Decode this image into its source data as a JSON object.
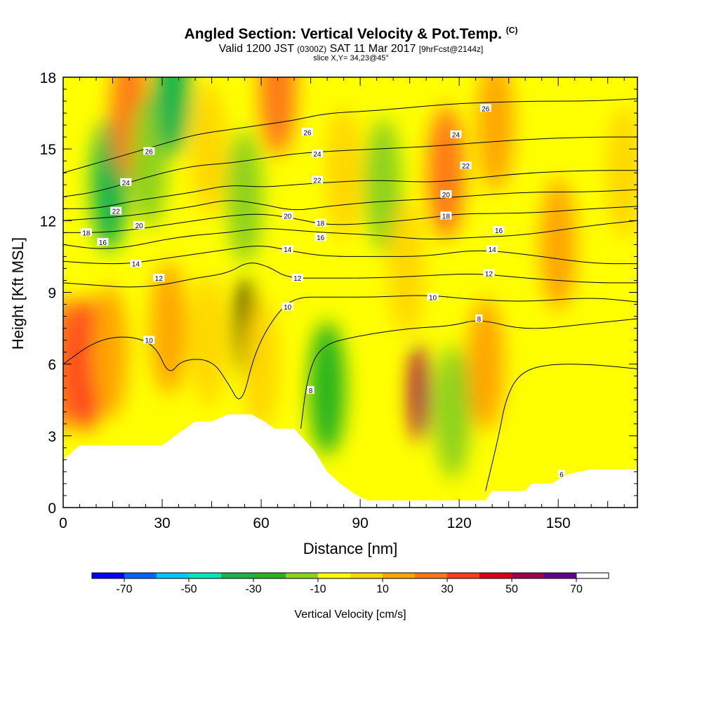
{
  "title": {
    "main": "Angled Section: Vertical Velocity & Pot.Temp.",
    "main_suffix": "(C)",
    "valid_prefix": "Valid 1200 JST",
    "valid_utc": "(0300Z)",
    "valid_date": "SAT 11 Mar 2017",
    "valid_fcst": "[9hrFcst@2144z]",
    "slice": "slice X,Y= 34,23@45°"
  },
  "chart_data": {
    "type": "heatmap",
    "xlabel": "Distance [nm]",
    "ylabel": "Height [Kft MSL]",
    "xlim": [
      0,
      174
    ],
    "ylim": [
      0,
      18
    ],
    "x_ticks": [
      0,
      30,
      60,
      90,
      120,
      150
    ],
    "y_ticks": [
      0,
      3,
      6,
      9,
      12,
      15,
      18
    ],
    "colorbar": {
      "label": "Vertical Velocity [cm/s]",
      "tick_labels": [
        "-70",
        "-50",
        "-30",
        "-10",
        "10",
        "30",
        "50",
        "70"
      ],
      "tick_values": [
        -70,
        -50,
        -30,
        -10,
        10,
        30,
        50,
        70
      ],
      "levels": [
        -80,
        -70,
        -60,
        -50,
        -40,
        -30,
        -20,
        -10,
        0,
        10,
        20,
        30,
        40,
        50,
        60,
        70,
        80
      ],
      "colors": [
        "#0000ff",
        "#0064ff",
        "#00c8ff",
        "#00e6b4",
        "#1ab44b",
        "#28b41e",
        "#8cd21e",
        "#ffff00",
        "#ffd700",
        "#ffa500",
        "#ff7814",
        "#ff3c1e",
        "#dc0014",
        "#a00050",
        "#64008c"
      ]
    },
    "terrain_profile": [
      [
        0,
        2.0
      ],
      [
        5,
        2.6
      ],
      [
        10,
        2.6
      ],
      [
        20,
        2.6
      ],
      [
        30,
        2.6
      ],
      [
        34,
        3.0
      ],
      [
        40,
        3.6
      ],
      [
        45,
        3.6
      ],
      [
        50,
        3.9
      ],
      [
        57,
        3.9
      ],
      [
        61,
        3.6
      ],
      [
        64,
        3.3
      ],
      [
        70,
        3.3
      ],
      [
        76,
        2.4
      ],
      [
        80,
        1.5
      ],
      [
        84,
        1.0
      ],
      [
        88,
        0.6
      ],
      [
        92,
        0.3
      ],
      [
        100,
        0.3
      ],
      [
        110,
        0.3
      ],
      [
        120,
        0.3
      ],
      [
        128,
        0.3
      ],
      [
        130,
        0.7
      ],
      [
        140,
        0.7
      ],
      [
        142,
        1.0
      ],
      [
        148,
        1.0
      ],
      [
        153,
        1.4
      ],
      [
        160,
        1.6
      ],
      [
        174,
        1.6
      ]
    ],
    "velocity_cells": [
      {
        "x": 0,
        "z": 6.0,
        "value": 25
      },
      {
        "x": 7,
        "z": 6.0,
        "value": 38
      },
      {
        "x": 14,
        "z": 6.5,
        "value": 15
      },
      {
        "x": 14,
        "z": 13.5,
        "value": -35
      },
      {
        "x": 20,
        "z": 16.5,
        "value": 25
      },
      {
        "x": 26,
        "z": 14.5,
        "value": -20
      },
      {
        "x": 32,
        "z": 7.5,
        "value": 12
      },
      {
        "x": 33,
        "z": 17.5,
        "value": -35
      },
      {
        "x": 44,
        "z": 7.0,
        "value": 8
      },
      {
        "x": 44,
        "z": 15.0,
        "value": 8
      },
      {
        "x": 55,
        "z": 7.5,
        "value": 75
      },
      {
        "x": 55,
        "z": 13.0,
        "value": -20
      },
      {
        "x": 60,
        "z": 6.0,
        "value": 5
      },
      {
        "x": 65,
        "z": 17.5,
        "value": 25
      },
      {
        "x": 80,
        "z": 5.0,
        "value": -25
      },
      {
        "x": 85,
        "z": 14.0,
        "value": 8
      },
      {
        "x": 97,
        "z": 13.5,
        "value": -15
      },
      {
        "x": 104,
        "z": 10.0,
        "value": 5
      },
      {
        "x": 108,
        "z": 4.8,
        "value": 50
      },
      {
        "x": 116,
        "z": 14.0,
        "value": 25
      },
      {
        "x": 118,
        "z": 4.0,
        "value": -20
      },
      {
        "x": 128,
        "z": 6.0,
        "value": 15
      },
      {
        "x": 131,
        "z": 16.0,
        "value": 12
      },
      {
        "x": 150,
        "z": 11.0,
        "value": 12
      },
      {
        "x": 156,
        "z": 4.0,
        "value": -5
      },
      {
        "x": 170,
        "z": 14.0,
        "value": 8
      }
    ],
    "isentropes": [
      {
        "label": "6",
        "points": [
          [
            128,
            0.7
          ],
          [
            132,
            3.0
          ],
          [
            134,
            4.5
          ],
          [
            138,
            5.6
          ],
          [
            146,
            6.0
          ],
          [
            160,
            6.0
          ],
          [
            174,
            5.8
          ]
        ]
      },
      {
        "label": "8",
        "points": [
          [
            72,
            3.3
          ],
          [
            74,
            5.5
          ],
          [
            78,
            6.8
          ],
          [
            90,
            7.2
          ],
          [
            105,
            7.5
          ],
          [
            118,
            7.6
          ],
          [
            126,
            7.9
          ],
          [
            140,
            7.4
          ],
          [
            160,
            7.7
          ],
          [
            174,
            7.9
          ]
        ]
      },
      {
        "label": "10",
        "points": [
          [
            0,
            6.0
          ],
          [
            10,
            7.0
          ],
          [
            20,
            7.2
          ],
          [
            28,
            6.8
          ],
          [
            32,
            5.5
          ],
          [
            36,
            6.2
          ],
          [
            45,
            6.2
          ],
          [
            50,
            5.2
          ],
          [
            54,
            4.2
          ],
          [
            58,
            6.5
          ],
          [
            64,
            8.0
          ],
          [
            70,
            8.8
          ],
          [
            80,
            8.8
          ],
          [
            95,
            8.8
          ],
          [
            110,
            8.9
          ],
          [
            124,
            8.7
          ],
          [
            140,
            8.6
          ],
          [
            160,
            8.8
          ],
          [
            174,
            8.6
          ]
        ]
      },
      {
        "label": "12",
        "points": [
          [
            0,
            9.4
          ],
          [
            10,
            9.3
          ],
          [
            20,
            9.2
          ],
          [
            30,
            9.3
          ],
          [
            40,
            9.6
          ],
          [
            50,
            9.8
          ],
          [
            56,
            10.3
          ],
          [
            62,
            10.1
          ],
          [
            68,
            9.6
          ],
          [
            78,
            9.6
          ],
          [
            95,
            9.6
          ],
          [
            110,
            9.7
          ],
          [
            125,
            9.8
          ],
          [
            140,
            9.6
          ],
          [
            160,
            9.4
          ],
          [
            174,
            9.4
          ]
        ]
      },
      {
        "label": "14",
        "points": [
          [
            0,
            10.3
          ],
          [
            10,
            10.2
          ],
          [
            20,
            10.2
          ],
          [
            30,
            10.4
          ],
          [
            40,
            10.6
          ],
          [
            50,
            10.8
          ],
          [
            60,
            11.0
          ],
          [
            70,
            10.7
          ],
          [
            80,
            10.5
          ],
          [
            95,
            10.5
          ],
          [
            110,
            10.5
          ],
          [
            125,
            10.8
          ],
          [
            140,
            10.6
          ],
          [
            160,
            10.2
          ],
          [
            174,
            10.2
          ]
        ]
      },
      {
        "label": "16",
        "points": [
          [
            0,
            11.0
          ],
          [
            10,
            10.8
          ],
          [
            20,
            10.9
          ],
          [
            30,
            11.2
          ],
          [
            40,
            11.4
          ],
          [
            50,
            11.5
          ],
          [
            60,
            11.7
          ],
          [
            70,
            11.6
          ],
          [
            80,
            11.5
          ],
          [
            95,
            11.4
          ],
          [
            110,
            11.2
          ],
          [
            125,
            11.3
          ],
          [
            140,
            11.4
          ],
          [
            160,
            11.8
          ],
          [
            174,
            12.0
          ]
        ]
      },
      {
        "label": "18",
        "points": [
          [
            0,
            11.5
          ],
          [
            10,
            11.5
          ],
          [
            20,
            11.6
          ],
          [
            30,
            11.8
          ],
          [
            40,
            12.0
          ],
          [
            50,
            12.2
          ],
          [
            60,
            12.3
          ],
          [
            70,
            12.1
          ],
          [
            80,
            11.8
          ],
          [
            95,
            11.9
          ],
          [
            110,
            12.1
          ],
          [
            120,
            12.3
          ],
          [
            140,
            12.3
          ],
          [
            160,
            12.5
          ],
          [
            174,
            12.6
          ]
        ]
      },
      {
        "label": "20",
        "points": [
          [
            0,
            12.0
          ],
          [
            10,
            12.1
          ],
          [
            20,
            12.2
          ],
          [
            30,
            12.4
          ],
          [
            40,
            12.6
          ],
          [
            50,
            12.9
          ],
          [
            60,
            12.7
          ],
          [
            70,
            12.4
          ],
          [
            80,
            12.6
          ],
          [
            95,
            12.8
          ],
          [
            110,
            12.9
          ],
          [
            120,
            13.0
          ],
          [
            140,
            13.2
          ],
          [
            160,
            13.2
          ],
          [
            174,
            13.3
          ]
        ]
      },
      {
        "label": "22",
        "points": [
          [
            0,
            12.5
          ],
          [
            10,
            12.5
          ],
          [
            20,
            12.8
          ],
          [
            30,
            13.0
          ],
          [
            40,
            13.2
          ],
          [
            50,
            13.5
          ],
          [
            60,
            13.4
          ],
          [
            70,
            13.5
          ],
          [
            80,
            13.6
          ],
          [
            95,
            13.7
          ],
          [
            110,
            13.6
          ],
          [
            120,
            13.7
          ],
          [
            140,
            14.0
          ],
          [
            160,
            14.1
          ],
          [
            174,
            14.1
          ]
        ]
      },
      {
        "label": "24",
        "points": [
          [
            0,
            13.0
          ],
          [
            10,
            13.2
          ],
          [
            20,
            13.6
          ],
          [
            30,
            14.0
          ],
          [
            40,
            14.3
          ],
          [
            50,
            14.4
          ],
          [
            60,
            14.6
          ],
          [
            70,
            14.8
          ],
          [
            80,
            14.9
          ],
          [
            95,
            15.0
          ],
          [
            110,
            15.1
          ],
          [
            120,
            15.2
          ],
          [
            140,
            15.4
          ],
          [
            160,
            15.5
          ],
          [
            174,
            15.5
          ]
        ]
      },
      {
        "label": "26",
        "points": [
          [
            0,
            14.0
          ],
          [
            10,
            14.4
          ],
          [
            20,
            14.8
          ],
          [
            30,
            15.2
          ],
          [
            40,
            15.6
          ],
          [
            50,
            15.8
          ],
          [
            60,
            16.0
          ],
          [
            70,
            16.2
          ],
          [
            80,
            16.5
          ],
          [
            95,
            16.6
          ],
          [
            110,
            16.8
          ],
          [
            120,
            16.9
          ],
          [
            140,
            17.0
          ],
          [
            160,
            17.0
          ],
          [
            174,
            17.1
          ]
        ]
      }
    ],
    "isentrope_labels": [
      {
        "text": "6",
        "x": 151,
        "z": 1.4
      },
      {
        "text": "8",
        "x": 75,
        "z": 4.9
      },
      {
        "text": "8",
        "x": 126,
        "z": 7.9
      },
      {
        "text": "10",
        "x": 26,
        "z": 7.0
      },
      {
        "text": "10",
        "x": 68,
        "z": 8.4
      },
      {
        "text": "10",
        "x": 112,
        "z": 8.8
      },
      {
        "text": "12",
        "x": 29,
        "z": 9.6
      },
      {
        "text": "12",
        "x": 71,
        "z": 9.6
      },
      {
        "text": "12",
        "x": 129,
        "z": 9.8
      },
      {
        "text": "14",
        "x": 22,
        "z": 10.2
      },
      {
        "text": "14",
        "x": 68,
        "z": 10.8
      },
      {
        "text": "14",
        "x": 130,
        "z": 10.8
      },
      {
        "text": "16",
        "x": 12,
        "z": 11.1
      },
      {
        "text": "16",
        "x": 78,
        "z": 11.3
      },
      {
        "text": "16",
        "x": 132,
        "z": 11.6
      },
      {
        "text": "18",
        "x": 7,
        "z": 11.5
      },
      {
        "text": "18",
        "x": 78,
        "z": 11.9
      },
      {
        "text": "18",
        "x": 116,
        "z": 12.2
      },
      {
        "text": "20",
        "x": 23,
        "z": 11.8
      },
      {
        "text": "20",
        "x": 68,
        "z": 12.2
      },
      {
        "text": "20",
        "x": 116,
        "z": 13.1
      },
      {
        "text": "22",
        "x": 16,
        "z": 12.4
      },
      {
        "text": "22",
        "x": 77,
        "z": 13.7
      },
      {
        "text": "22",
        "x": 122,
        "z": 14.3
      },
      {
        "text": "24",
        "x": 19,
        "z": 13.6
      },
      {
        "text": "24",
        "x": 77,
        "z": 14.8
      },
      {
        "text": "24",
        "x": 119,
        "z": 15.6
      },
      {
        "text": "26",
        "x": 26,
        "z": 14.9
      },
      {
        "text": "26",
        "x": 74,
        "z": 15.7
      },
      {
        "text": "26",
        "x": 128,
        "z": 16.7
      }
    ]
  }
}
